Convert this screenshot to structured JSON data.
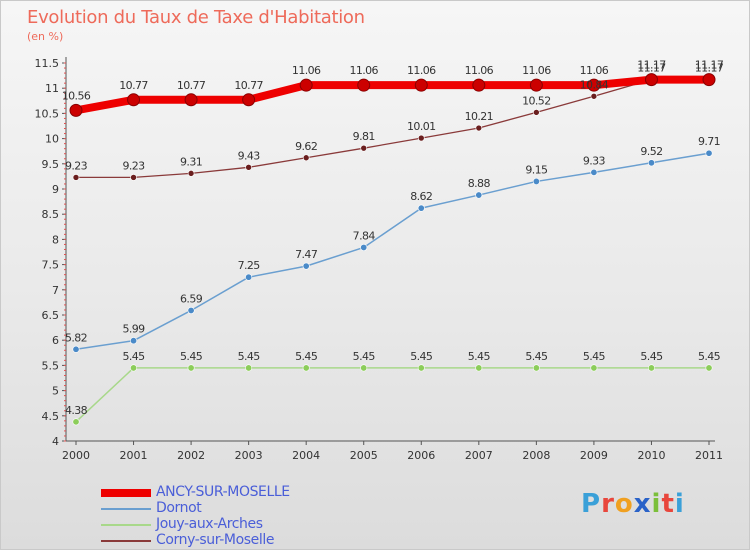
{
  "header": {
    "title": "Evolution du Taux de Taxe d'Habitation",
    "subtitle": "(en %)"
  },
  "brand": {
    "name": "Proxiti",
    "letters": [
      {
        "char": "P",
        "color": "#3aa0d8"
      },
      {
        "char": "r",
        "color": "#e8463c"
      },
      {
        "char": "o",
        "color": "#f0a020"
      },
      {
        "char": "x",
        "color": "#2a62c8"
      },
      {
        "char": "i",
        "color": "#7bbf3a"
      },
      {
        "char": "t",
        "color": "#e8463c"
      },
      {
        "char": "i",
        "color": "#3aa0d8"
      }
    ]
  },
  "chart_data": {
    "type": "line",
    "title": "Evolution du Taux de Taxe d'Habitation",
    "subtitle": "(en %)",
    "xlabel": "",
    "ylabel": "",
    "x": [
      "2000",
      "2001",
      "2002",
      "2003",
      "2004",
      "2005",
      "2006",
      "2007",
      "2008",
      "2009",
      "2010",
      "2011"
    ],
    "ylim": [
      4,
      11.5
    ],
    "yticks": [
      "4",
      "4.5",
      "5",
      "5.5",
      "6",
      "6.5",
      "7",
      "7.5",
      "8",
      "8.5",
      "9",
      "9.5",
      "10",
      "10.5",
      "11",
      "11.5"
    ],
    "grid": false,
    "legend": "bottom-left",
    "series": [
      {
        "name": "ANCY-SUR-MOSELLE",
        "color": "#ee0000",
        "values": [
          10.56,
          10.77,
          10.77,
          10.77,
          11.06,
          11.06,
          11.06,
          11.06,
          11.06,
          11.06,
          11.17,
          11.17
        ],
        "labels": [
          "10.56",
          "10.77",
          "10.77",
          "10.77",
          "11.06",
          "11.06",
          "11.06",
          "11.06",
          "11.06",
          "11.06",
          "11.17",
          "11.17"
        ]
      },
      {
        "name": "Dornot",
        "color": "#6a9fd0",
        "values": [
          5.82,
          5.99,
          6.59,
          7.25,
          7.47,
          7.84,
          8.62,
          8.88,
          9.15,
          9.33,
          9.52,
          9.71
        ],
        "labels": [
          "5.82",
          "5.99",
          "6.59",
          "7.25",
          "7.47",
          "7.84",
          "8.62",
          "8.88",
          "9.15",
          "9.33",
          "9.52",
          "9.71"
        ]
      },
      {
        "name": "Jouy-aux-Arches",
        "color": "#a8d88a",
        "values": [
          4.38,
          5.45,
          5.45,
          5.45,
          5.45,
          5.45,
          5.45,
          5.45,
          5.45,
          5.45,
          5.45,
          5.45
        ],
        "labels": [
          "4.38",
          "5.45",
          "5.45",
          "5.45",
          "5.45",
          "5.45",
          "5.45",
          "5.45",
          "5.45",
          "5.45",
          "5.45",
          "5.45"
        ]
      },
      {
        "name": "Corny-sur-Moselle",
        "color": "#8a3a3a",
        "values": [
          9.23,
          9.23,
          9.31,
          9.43,
          9.62,
          9.81,
          10.01,
          10.21,
          10.52,
          10.84,
          11.17,
          11.17
        ],
        "labels": [
          "9.23",
          "9.23",
          "9.31",
          "9.43",
          "9.62",
          "9.81",
          "10.01",
          "10.21",
          "10.52",
          "10.84",
          "11.17",
          "11.17"
        ]
      }
    ]
  }
}
